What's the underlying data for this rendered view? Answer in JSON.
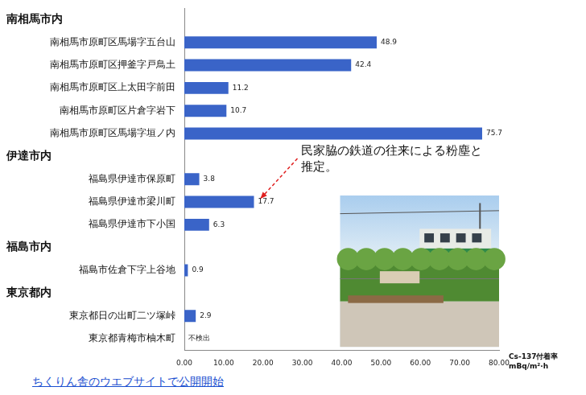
{
  "chart_data": {
    "type": "bar",
    "orientation": "horizontal",
    "groups": [
      {
        "name": "南相馬市内",
        "categories": [
          "南相馬市原町区馬場字五台山",
          "南相馬市原町区押釜字戸鳥土",
          "南相馬市原町区上太田字前田",
          "南相馬市原町区片倉字岩下",
          "南相馬市原町区馬場字垣ノ内"
        ],
        "values": [
          48.9,
          42.4,
          11.2,
          10.7,
          75.7
        ]
      },
      {
        "name": "伊達市内",
        "categories": [
          "福島県伊達市保原町",
          "福島県伊達市梁川町",
          "福島県伊達市下小国"
        ],
        "values": [
          3.8,
          17.7,
          6.3
        ]
      },
      {
        "name": "福島市内",
        "categories": [
          "福島市佐倉下字上谷地"
        ],
        "values": [
          0.9
        ]
      },
      {
        "name": "東京都内",
        "categories": [
          "東京都日の出町二ツ塚峠",
          "東京都青梅市柚木町"
        ],
        "values": [
          2.9,
          null
        ],
        "value_labels": [
          "2.9",
          "不検出"
        ]
      }
    ],
    "color": "#3a64c8",
    "xlim": [
      0,
      80
    ],
    "xticks": [
      {
        "value": 0,
        "label": "0.00"
      },
      {
        "value": 10,
        "label": "10.00"
      },
      {
        "value": 20,
        "label": "20.00"
      },
      {
        "value": 30,
        "label": "30.00"
      },
      {
        "value": 40,
        "label": "40.00"
      },
      {
        "value": 50,
        "label": "50.00"
      },
      {
        "value": 60,
        "label": "60.00"
      },
      {
        "value": 70,
        "label": "70.00"
      },
      {
        "value": 80,
        "label": "80.00"
      }
    ],
    "x_label": [
      "Cs-137付着率",
      "mBq/m²·h"
    ],
    "annotations": [
      {
        "text": "民家脇の鉄道の往来による粉塵と推定。",
        "category": "福島県伊達市梁川町"
      }
    ],
    "caption": "ちくりん舎のウエブサイトで公開開始",
    "grid": false,
    "data_labels": true
  }
}
